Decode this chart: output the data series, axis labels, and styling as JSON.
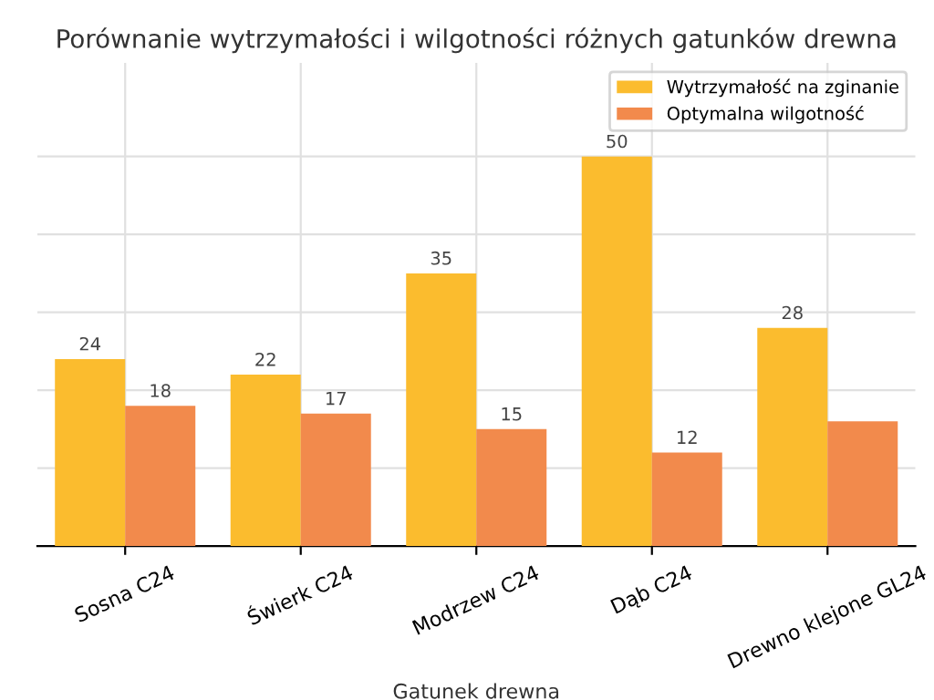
{
  "chart_data": {
    "type": "bar",
    "title": "Porównanie wytrzymałości i wilgotności różnych gatunków drewna",
    "xlabel": "Gatunek drewna",
    "categories": [
      "Sosna C24",
      "Świerk C24",
      "Modrzew C24",
      "Dąb C24",
      "Drewno klejone GL24"
    ],
    "series": [
      {
        "name": "Wytrzymałość na zginanie",
        "color": "#fbbc2e",
        "values": [
          24,
          22,
          35,
          50,
          28
        ],
        "value_labels": [
          "24",
          "22",
          "35",
          "50",
          "28"
        ]
      },
      {
        "name": "Optymalna wilgotność",
        "color": "#f28a4c",
        "values": [
          18,
          17,
          15,
          12,
          16
        ],
        "value_labels": [
          "18",
          "17",
          "15",
          "12",
          null
        ]
      }
    ],
    "ylim": [
      0,
      62
    ],
    "yticks": [
      {
        "value": 0,
        "label": null
      },
      {
        "value": 10,
        "label": null
      },
      {
        "value": 20,
        "label": null
      },
      {
        "value": 30,
        "label": null
      },
      {
        "value": 40,
        "label": null
      },
      {
        "value": 50,
        "label": null
      }
    ],
    "tick_labels": "x",
    "grid": true,
    "legend": "top right"
  }
}
